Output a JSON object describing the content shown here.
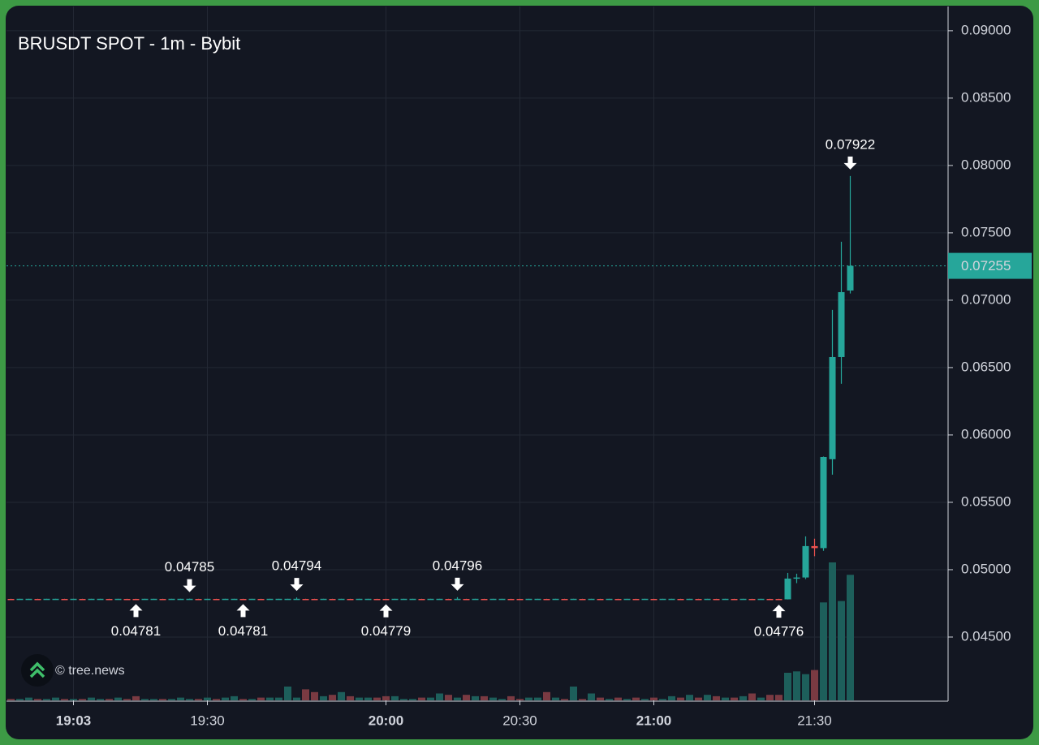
{
  "chart_data": {
    "type": "candlestick",
    "title": "BRUSDT SPOT - 1m - Bybit",
    "watermark": "© tree.news",
    "up_color": "#26a69a",
    "down_color": "#ef5350",
    "volume_up_color": "#1d5f5b",
    "volume_down_color": "#7a3a42",
    "grid": true,
    "ylim": [
      0.0403,
      0.0918
    ],
    "yticks": [
      {
        "value": 0.045,
        "label": "0.04500"
      },
      {
        "value": 0.05,
        "label": "0.05000"
      },
      {
        "value": 0.055,
        "label": "0.05500"
      },
      {
        "value": 0.06,
        "label": "0.06000"
      },
      {
        "value": 0.065,
        "label": "0.06500"
      },
      {
        "value": 0.07,
        "label": "0.07000"
      },
      {
        "value": 0.075,
        "label": "0.07500"
      },
      {
        "value": 0.08,
        "label": "0.08000"
      },
      {
        "value": 0.085,
        "label": "0.08500"
      },
      {
        "value": 0.09,
        "label": "0.09000"
      }
    ],
    "xticks": [
      "19:03",
      "19:30",
      "20:00",
      "20:30",
      "21:00",
      "21:30"
    ],
    "x": [
      "18:56",
      "18:57",
      "18:58",
      "18:59",
      "19:00",
      "19:01",
      "19:02",
      "19:03",
      "19:05",
      "19:07",
      "19:09",
      "19:11",
      "19:13",
      "19:14",
      "19:16",
      "19:18",
      "19:20",
      "19:22",
      "19:24",
      "19:25",
      "19:27",
      "19:28",
      "19:30",
      "19:31",
      "19:33",
      "19:34",
      "19:36",
      "19:37",
      "19:39",
      "19:40",
      "19:42",
      "19:43",
      "19:45",
      "19:46",
      "19:48",
      "19:49",
      "19:51",
      "19:52",
      "19:54",
      "19:55",
      "19:57",
      "19:58",
      "20:00",
      "20:02",
      "20:04",
      "20:06",
      "20:08",
      "20:10",
      "20:12",
      "20:14",
      "20:16",
      "20:18",
      "20:20",
      "20:22",
      "20:24",
      "20:26",
      "20:28",
      "20:30",
      "20:32",
      "20:34",
      "20:36",
      "20:38",
      "20:40",
      "20:42",
      "20:44",
      "20:46",
      "20:48",
      "20:50",
      "20:52",
      "20:54",
      "20:56",
      "20:58",
      "21:00",
      "21:02",
      "21:04",
      "21:06",
      "21:08",
      "21:10",
      "21:12",
      "21:14",
      "21:16",
      "21:18",
      "21:20",
      "21:22",
      "21:24",
      "21:25",
      "21:26",
      "21:27",
      "21:28",
      "21:29",
      "21:30",
      "21:31",
      "21:32",
      "21:33",
      "21:34"
    ],
    "open": [
      0.04783,
      0.04783,
      0.04783,
      0.04783,
      0.04783,
      0.04783,
      0.04783,
      0.04783,
      0.04783,
      0.04783,
      0.04783,
      0.04783,
      0.04783,
      0.04783,
      0.04783,
      0.04783,
      0.04783,
      0.04783,
      0.04783,
      0.04783,
      0.04783,
      0.04783,
      0.04783,
      0.04783,
      0.04783,
      0.04783,
      0.04783,
      0.04783,
      0.04783,
      0.04783,
      0.04783,
      0.04783,
      0.04783,
      0.04783,
      0.04783,
      0.04783,
      0.04783,
      0.04783,
      0.04783,
      0.04783,
      0.04783,
      0.04783,
      0.04783,
      0.04783,
      0.04783,
      0.04783,
      0.04783,
      0.04783,
      0.04783,
      0.04783,
      0.04783,
      0.04783,
      0.04783,
      0.04783,
      0.04783,
      0.04783,
      0.04783,
      0.04783,
      0.04783,
      0.04783,
      0.04783,
      0.04783,
      0.04783,
      0.04783,
      0.04783,
      0.04783,
      0.04783,
      0.04783,
      0.04783,
      0.04783,
      0.04783,
      0.04783,
      0.04783,
      0.04783,
      0.04783,
      0.04783,
      0.04783,
      0.04783,
      0.04783,
      0.04783,
      0.04783,
      0.04783,
      0.04783,
      0.04783,
      0.04783,
      0.04783,
      0.04783,
      0.0478,
      0.04934,
      0.04942,
      0.05175,
      0.0516,
      0.0582,
      0.06578,
      0.07072
    ],
    "high": [
      0.04784,
      0.04784,
      0.04784,
      0.04784,
      0.04784,
      0.04784,
      0.04784,
      0.04784,
      0.04784,
      0.04784,
      0.04784,
      0.04784,
      0.04784,
      0.04784,
      0.04784,
      0.04784,
      0.04784,
      0.04784,
      0.04784,
      0.04784,
      0.04785,
      0.04784,
      0.04784,
      0.04784,
      0.04784,
      0.04784,
      0.04784,
      0.04784,
      0.04784,
      0.04784,
      0.04784,
      0.04784,
      0.04794,
      0.04784,
      0.04784,
      0.04784,
      0.04784,
      0.04784,
      0.04784,
      0.04784,
      0.04784,
      0.04784,
      0.04784,
      0.04784,
      0.04784,
      0.04784,
      0.04784,
      0.04784,
      0.04784,
      0.04784,
      0.04796,
      0.04784,
      0.04784,
      0.04784,
      0.04784,
      0.04784,
      0.04784,
      0.04784,
      0.04784,
      0.04784,
      0.04784,
      0.04784,
      0.04784,
      0.04784,
      0.04784,
      0.04784,
      0.04784,
      0.04784,
      0.04784,
      0.04784,
      0.04784,
      0.04784,
      0.04784,
      0.04784,
      0.04784,
      0.04784,
      0.04784,
      0.04784,
      0.04784,
      0.04784,
      0.04784,
      0.04784,
      0.04784,
      0.04784,
      0.04784,
      0.04784,
      0.04784,
      0.04976,
      0.0497,
      0.05247,
      0.0523,
      0.0584,
      0.06928,
      0.07434,
      0.07922
    ],
    "low": [
      0.04782,
      0.04782,
      0.04782,
      0.04782,
      0.04782,
      0.04782,
      0.04782,
      0.04782,
      0.04782,
      0.04782,
      0.04782,
      0.04782,
      0.04782,
      0.04782,
      0.04781,
      0.04782,
      0.04782,
      0.04782,
      0.04782,
      0.04782,
      0.04782,
      0.04782,
      0.04782,
      0.04782,
      0.04782,
      0.04782,
      0.04781,
      0.04782,
      0.04782,
      0.04782,
      0.04782,
      0.04782,
      0.04782,
      0.04782,
      0.04782,
      0.04782,
      0.04782,
      0.04782,
      0.04782,
      0.04782,
      0.04782,
      0.04782,
      0.04779,
      0.04782,
      0.04782,
      0.04782,
      0.04782,
      0.04782,
      0.04782,
      0.04782,
      0.04782,
      0.04782,
      0.04782,
      0.04782,
      0.04782,
      0.04782,
      0.04782,
      0.04782,
      0.04782,
      0.04782,
      0.04782,
      0.04782,
      0.04782,
      0.04782,
      0.04782,
      0.04782,
      0.04782,
      0.04782,
      0.04782,
      0.04782,
      0.04782,
      0.04782,
      0.04782,
      0.04782,
      0.04782,
      0.04782,
      0.04782,
      0.04782,
      0.04782,
      0.04782,
      0.04782,
      0.04782,
      0.04782,
      0.04782,
      0.04782,
      0.04782,
      0.04776,
      0.04779,
      0.049,
      0.0493,
      0.051,
      0.0514,
      0.05705,
      0.0638,
      0.0705
    ],
    "close": [
      0.04782,
      0.04784,
      0.04784,
      0.04782,
      0.04784,
      0.04784,
      0.04782,
      0.04784,
      0.04782,
      0.04784,
      0.04784,
      0.04782,
      0.04784,
      0.04782,
      0.04782,
      0.04784,
      0.04784,
      0.04782,
      0.04784,
      0.04784,
      0.04784,
      0.04782,
      0.04784,
      0.04782,
      0.04784,
      0.04784,
      0.04782,
      0.04784,
      0.04782,
      0.04784,
      0.04784,
      0.04784,
      0.04784,
      0.04782,
      0.04782,
      0.04784,
      0.04782,
      0.04784,
      0.04782,
      0.04784,
      0.04784,
      0.04782,
      0.04782,
      0.04784,
      0.04784,
      0.04784,
      0.04782,
      0.04784,
      0.04784,
      0.04782,
      0.04784,
      0.04782,
      0.04784,
      0.04782,
      0.04784,
      0.04784,
      0.04782,
      0.04782,
      0.04784,
      0.04784,
      0.04782,
      0.04784,
      0.04782,
      0.04784,
      0.04782,
      0.04784,
      0.04782,
      0.04784,
      0.04782,
      0.04784,
      0.04782,
      0.04784,
      0.04782,
      0.04784,
      0.04784,
      0.04782,
      0.04784,
      0.04782,
      0.04784,
      0.04782,
      0.04784,
      0.04782,
      0.04784,
      0.04782,
      0.04784,
      0.04782,
      0.04782,
      0.04934,
      0.04942,
      0.05175,
      0.0516,
      0.05837,
      0.06578,
      0.0706,
      0.07255
    ],
    "volume": [
      1,
      1,
      2,
      1,
      1,
      2,
      1,
      1,
      1,
      2,
      1,
      1,
      2,
      1,
      3,
      1,
      1,
      1,
      1,
      2,
      1,
      1,
      2,
      1,
      2,
      3,
      1,
      1,
      2,
      2,
      2,
      10,
      2,
      8,
      6,
      3,
      4,
      6,
      3,
      2,
      2,
      2,
      3,
      3,
      1,
      1,
      2,
      2,
      5,
      4,
      2,
      4,
      3,
      3,
      2,
      1,
      3,
      1,
      2,
      2,
      6,
      2,
      1,
      10,
      1,
      5,
      2,
      1,
      2,
      1,
      2,
      1,
      2,
      1,
      3,
      2,
      4,
      2,
      4,
      3,
      2,
      2,
      3,
      5,
      2,
      4,
      4,
      20,
      21,
      19,
      22,
      71,
      100,
      72,
      91
    ],
    "annotations": [
      {
        "x": "19:16",
        "value": 0.04781,
        "kind": "low"
      },
      {
        "x": "19:27",
        "value": 0.04785,
        "kind": "high"
      },
      {
        "x": "19:36",
        "value": 0.04781,
        "kind": "low"
      },
      {
        "x": "19:45",
        "value": 0.04794,
        "kind": "high"
      },
      {
        "x": "20:00",
        "value": 0.04779,
        "kind": "low"
      },
      {
        "x": "20:16",
        "value": 0.04796,
        "kind": "high"
      },
      {
        "x": "21:26",
        "value": 0.04776,
        "kind": "low"
      },
      {
        "x": "21:34",
        "value": 0.07922,
        "kind": "high"
      }
    ]
  }
}
